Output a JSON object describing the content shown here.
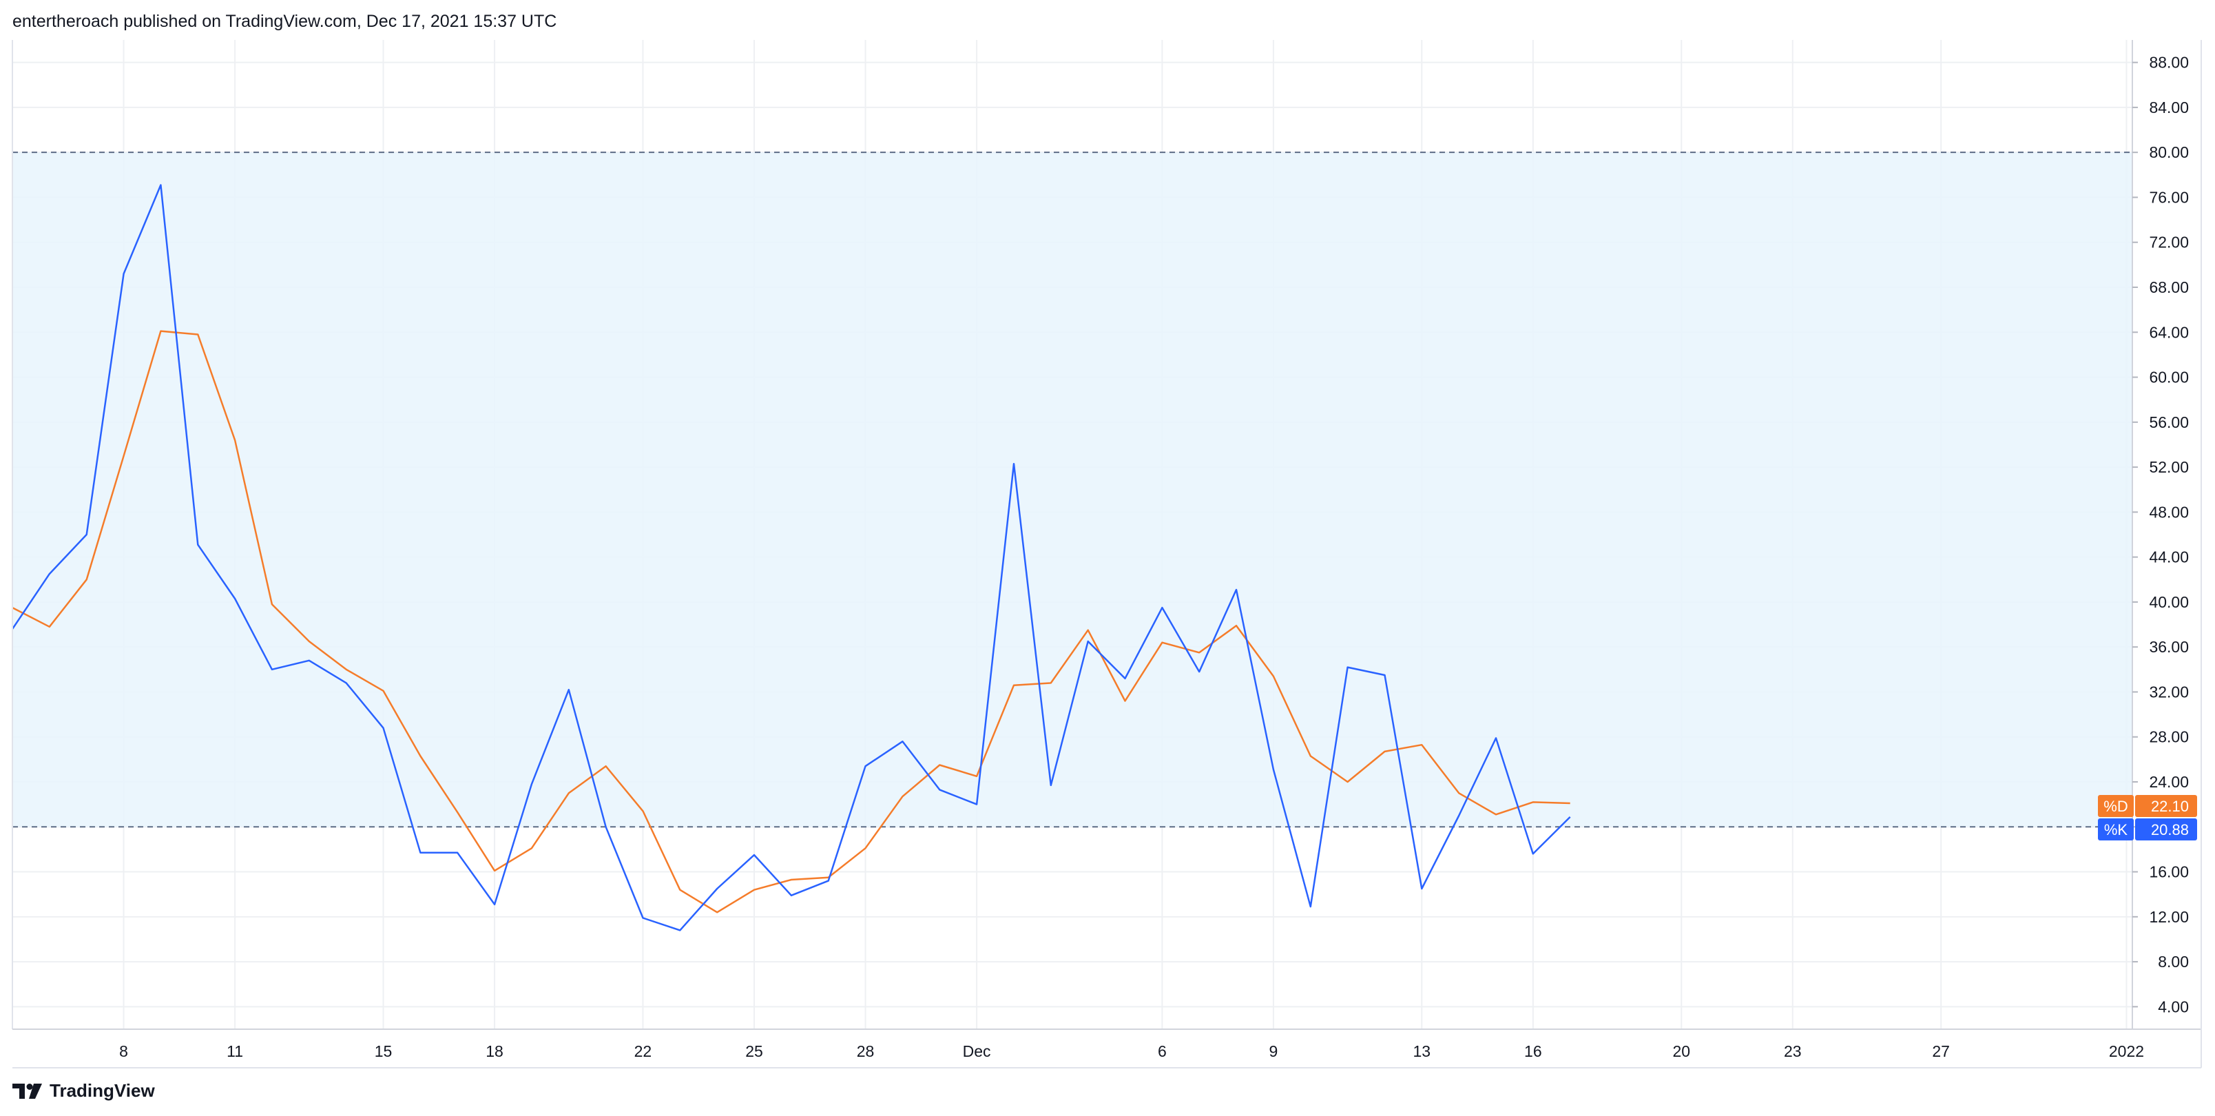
{
  "header": {
    "published_by": "entertheroach published on TradingView.com, Dec 17, 2021 15:37 UTC"
  },
  "footer": {
    "brand": "TradingView"
  },
  "colors": {
    "k_line": "#2962ff",
    "d_line": "#f57c2a",
    "band_fill": "#e8f4fd",
    "grid": "#eef0f3",
    "band_border": "#5d6c86"
  },
  "chart_data": {
    "type": "line",
    "ylim": [
      2,
      90
    ],
    "y_ticks": [
      "88.00",
      "84.00",
      "80.00",
      "76.00",
      "72.00",
      "68.00",
      "64.00",
      "60.00",
      "56.00",
      "52.00",
      "48.00",
      "44.00",
      "40.00",
      "36.00",
      "32.00",
      "28.00",
      "24.00",
      "20.00",
      "16.00",
      "12.00",
      "8.00",
      "4.00"
    ],
    "x_ticks": [
      {
        "label": "8",
        "i": 3
      },
      {
        "label": "11",
        "i": 6
      },
      {
        "label": "15",
        "i": 10
      },
      {
        "label": "18",
        "i": 13
      },
      {
        "label": "22",
        "i": 17
      },
      {
        "label": "25",
        "i": 20
      },
      {
        "label": "28",
        "i": 23
      },
      {
        "label": "Dec",
        "i": 26
      },
      {
        "label": "6",
        "i": 31
      },
      {
        "label": "9",
        "i": 34
      },
      {
        "label": "13",
        "i": 38
      },
      {
        "label": "16",
        "i": 41
      },
      {
        "label": "20",
        "i": 45
      },
      {
        "label": "23",
        "i": 48
      },
      {
        "label": "27",
        "i": 52
      },
      {
        "label": "2022",
        "i": 57
      }
    ],
    "bands": {
      "upper": 80,
      "lower": 20
    },
    "series": [
      {
        "name": "%K",
        "last_value": "20.88",
        "values": [
          37.6,
          42.5,
          46.0,
          69.2,
          77.1,
          45.1,
          40.3,
          34.0,
          34.8,
          32.8,
          28.8,
          17.7,
          17.7,
          13.1,
          23.8,
          32.2,
          20.0,
          11.9,
          10.8,
          14.5,
          17.5,
          13.9,
          15.2,
          25.4,
          27.6,
          23.3,
          22.0,
          52.3,
          23.7,
          36.5,
          33.2,
          39.5,
          33.8,
          41.1,
          25.1,
          12.9,
          34.2,
          33.5,
          14.5,
          21.0,
          27.9,
          17.6,
          20.88
        ]
      },
      {
        "name": "%D",
        "last_value": "22.10",
        "values": [
          39.5,
          37.8,
          42.0,
          53.0,
          64.1,
          63.8,
          54.4,
          39.8,
          36.5,
          34.0,
          32.1,
          26.3,
          21.3,
          16.1,
          18.1,
          23.0,
          25.4,
          21.4,
          14.4,
          12.4,
          14.4,
          15.3,
          15.5,
          18.1,
          22.7,
          25.5,
          24.5,
          32.6,
          32.8,
          37.5,
          31.2,
          36.4,
          35.5,
          37.9,
          33.4,
          26.3,
          24.0,
          26.7,
          27.3,
          23.0,
          21.1,
          22.2,
          22.1
        ]
      }
    ]
  }
}
